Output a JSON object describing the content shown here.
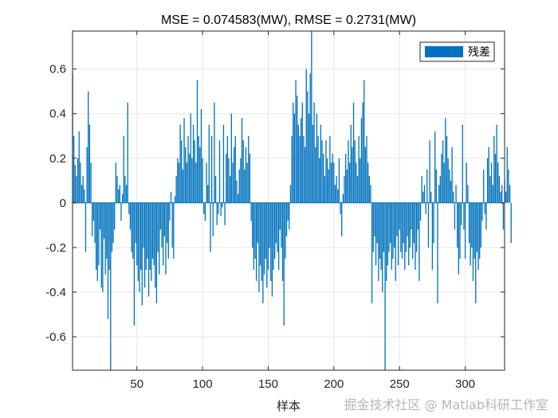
{
  "chart_data": {
    "type": "bar",
    "title": "MSE = 0.074583(MW), RMSE = 0.2731(MW)",
    "xlabel": "样本",
    "ylabel": "",
    "xlim": [
      1,
      330
    ],
    "ylim": [
      -0.75,
      0.77
    ],
    "x_ticks": [
      50,
      100,
      150,
      200,
      250,
      300
    ],
    "y_ticks": [
      -0.6,
      -0.4,
      -0.2,
      0,
      0.2,
      0.4,
      0.6
    ],
    "grid": true,
    "legend_position": "top-right",
    "series": [
      {
        "name": "残差",
        "color": "#0072BD",
        "values": [
          0.58,
          0.3,
          0.17,
          0.12,
          0.2,
          0.32,
          0.18,
          0.08,
          0.12,
          0.06,
          -0.22,
          0.25,
          0.5,
          0.35,
          0.18,
          -0.15,
          -0.08,
          -0.18,
          -0.3,
          -0.35,
          -0.28,
          -0.12,
          -0.38,
          -0.4,
          -0.16,
          -0.32,
          -0.25,
          -0.52,
          -0.3,
          -0.75,
          -0.22,
          -0.18,
          -0.12,
          0.18,
          0.12,
          0.06,
          0.08,
          -0.08,
          0.04,
          0.3,
          0.12,
          0.08,
          0.45,
          -0.05,
          -0.12,
          -0.22,
          -0.25,
          -0.55,
          -0.18,
          -0.28,
          -0.35,
          -0.4,
          -0.3,
          -0.46,
          -0.2,
          -0.38,
          -0.3,
          -0.25,
          -0.42,
          -0.3,
          -0.35,
          -0.25,
          -0.28,
          -0.38,
          -0.45,
          -0.22,
          -0.32,
          -0.12,
          -0.2,
          -0.28,
          -0.15,
          -0.32,
          -0.18,
          -0.25,
          -0.08,
          0.05,
          -0.2,
          -0.25,
          0.03,
          0.12,
          0.2,
          0.18,
          0.35,
          0.28,
          0.15,
          0.38,
          0.25,
          0.18,
          0.3,
          0.22,
          0.4,
          0.2,
          0.35,
          0.28,
          0.18,
          0.55,
          0.3,
          0.25,
          0.42,
          0.2,
          -0.05,
          -0.08,
          0.18,
          0.08,
          0.35,
          -0.22,
          0.3,
          -0.15,
          0.45,
          0.12,
          -0.1,
          -0.05,
          0.28,
          -0.06,
          -0.02,
          0.35,
          -0.1,
          0.22,
          0.3,
          0.2,
          0.12,
          0.4,
          0.18,
          0.25,
          0.3,
          0.1,
          0.04,
          0.15,
          0.2,
          0.38,
          0.28,
          0.15,
          0.25,
          0.18,
          0.3,
          0.22,
          -0.08,
          -0.2,
          -0.3,
          -0.25,
          -0.35,
          -0.18,
          -0.4,
          -0.28,
          -0.35,
          -0.45,
          -0.32,
          -0.25,
          -0.38,
          -0.3,
          -0.2,
          -0.35,
          -0.42,
          -0.3,
          -0.25,
          -0.18,
          -0.22,
          -0.3,
          -0.12,
          -0.2,
          -0.35,
          -0.55,
          -0.25,
          -0.15,
          -0.08,
          -0.12,
          0.08,
          0.3,
          0.45,
          0.4,
          0.55,
          0.48,
          0.35,
          0.3,
          0.38,
          0.45,
          0.3,
          0.25,
          0.6,
          0.5,
          0.4,
          0.58,
          0.77,
          0.35,
          0.45,
          0.25,
          0.4,
          0.3,
          0.2,
          0.35,
          0.28,
          0.22,
          0.12,
          0.28,
          0.2,
          0.15,
          0.3,
          0.18,
          0.22,
          0.18,
          0.08,
          0.12,
          0.06,
          0.2,
          -0.05,
          -0.15,
          0.04,
          0.12,
          0.22,
          0.15,
          0.28,
          0.18,
          0.35,
          0.25,
          0.45,
          0.28,
          0.18,
          0.12,
          0.3,
          0.2,
          0.38,
          0.45,
          0.55,
          0.25,
          0.3,
          0.18,
          0.12,
          0.08,
          -0.45,
          -0.22,
          -0.15,
          -0.28,
          -0.18,
          -0.35,
          -0.25,
          -0.3,
          -0.4,
          -0.22,
          -0.75,
          -0.35,
          -0.28,
          -0.22,
          -0.18,
          -0.3,
          -0.25,
          -0.2,
          -0.35,
          -0.15,
          -0.28,
          -0.12,
          -0.22,
          -0.25,
          -0.18,
          -0.3,
          -0.22,
          -0.15,
          -0.28,
          -0.2,
          -0.12,
          -0.25,
          -0.18,
          -0.3,
          -0.22,
          -0.12,
          -0.35,
          -0.08,
          0.12,
          0.05,
          0.08,
          -0.05,
          0.15,
          -0.2,
          0.28,
          0.05,
          -0.3,
          -0.18,
          0.32,
          0.15,
          -0.45,
          0.08,
          0.12,
          0.22,
          0.28,
          0.18,
          0.38,
          0.3,
          0.2,
          0.15,
          0.1,
          0.25,
          0.05,
          -0.12,
          0.08,
          -0.2,
          -0.32,
          -0.25,
          -0.1,
          0.35,
          -0.12,
          -0.25,
          0.18,
          0.08,
          -0.18,
          -0.28,
          -0.2,
          -0.35,
          -0.25,
          -0.45,
          -0.22,
          -0.3,
          -0.25,
          -0.2,
          -0.08,
          0.15,
          -0.05,
          -0.12,
          0.2,
          0.25,
          0.12,
          0.18,
          0.08,
          0.3,
          0.22,
          0.35,
          0.18,
          0.12,
          0.05,
          0.08,
          -0.12,
          0.1,
          0.05,
          0.25,
          0.15,
          0.08,
          -0.18
        ]
      }
    ]
  },
  "watermark": "掘金技术社区 @ Matlab科研工作室"
}
